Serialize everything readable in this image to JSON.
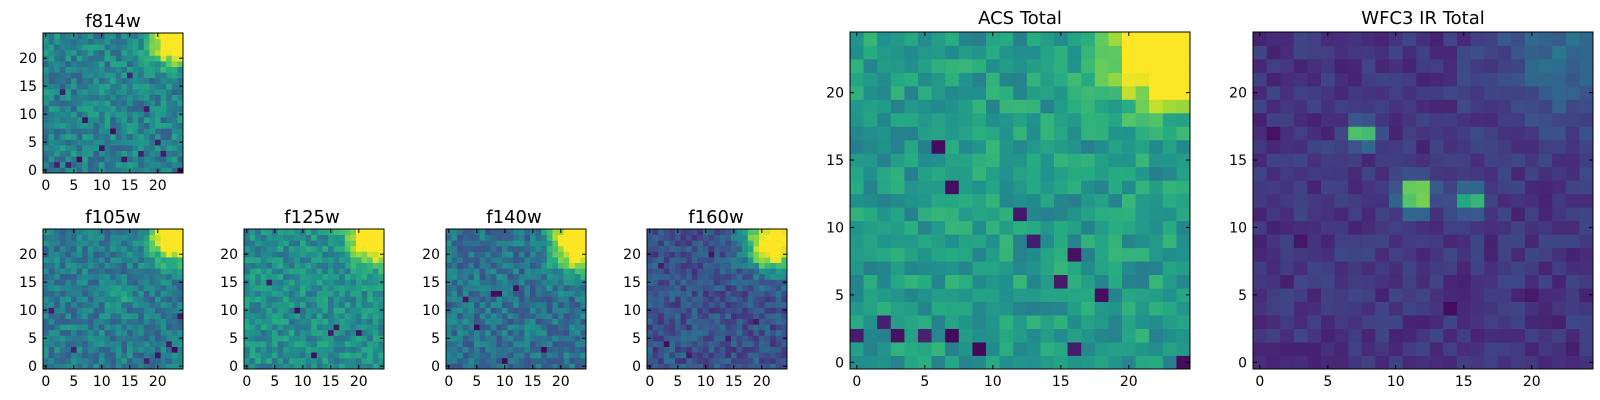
{
  "figure": {
    "colormap": "viridis",
    "colors": {
      "low": "#440154",
      "mid": "#21918c",
      "high": "#fde725",
      "frame": "#000000",
      "background": "#ffffff"
    }
  },
  "chart_data": [
    {
      "type": "heatmap",
      "title": "f814w",
      "grid_size": 25,
      "xlim": [
        0,
        24
      ],
      "ylim": [
        0,
        24
      ],
      "xticks": [
        "0",
        "5",
        "10",
        "15",
        "20"
      ],
      "yticks": [
        "0",
        "5",
        "10",
        "15",
        "20"
      ],
      "background_level": 0.45,
      "noise": 0.14,
      "seed": 11,
      "sources": [
        {
          "x": 23,
          "y": 23,
          "amp": 0.95,
          "sigma": 2.6
        }
      ],
      "dark_pixels": [
        [
          2,
          1
        ],
        [
          4,
          1
        ],
        [
          6,
          2
        ],
        [
          10,
          4
        ],
        [
          14,
          2
        ],
        [
          17,
          3
        ],
        [
          20,
          5
        ],
        [
          12,
          7
        ],
        [
          7,
          9
        ],
        [
          18,
          11
        ],
        [
          3,
          14
        ],
        [
          15,
          17
        ],
        [
          24,
          0
        ],
        [
          21,
          3
        ]
      ]
    },
    {
      "type": "heatmap",
      "title": "f105w",
      "grid_size": 25,
      "xlim": [
        0,
        24
      ],
      "ylim": [
        0,
        24
      ],
      "xticks": [
        "0",
        "5",
        "10",
        "15",
        "20"
      ],
      "yticks": [
        "0",
        "5",
        "10",
        "15",
        "20"
      ],
      "background_level": 0.42,
      "noise": 0.13,
      "seed": 23,
      "sources": [
        {
          "x": 23,
          "y": 23,
          "amp": 0.9,
          "sigma": 2.8
        },
        {
          "x": 13,
          "y": 13,
          "amp": 0.18,
          "sigma": 1.5
        }
      ],
      "dark_pixels": [
        [
          22,
          4
        ],
        [
          23,
          3
        ],
        [
          20,
          2
        ],
        [
          18,
          1
        ],
        [
          1,
          10
        ],
        [
          24,
          9
        ],
        [
          5,
          3
        ]
      ]
    },
    {
      "type": "heatmap",
      "title": "f125w",
      "grid_size": 25,
      "xlim": [
        0,
        24
      ],
      "ylim": [
        0,
        24
      ],
      "xticks": [
        "0",
        "5",
        "10",
        "15",
        "20"
      ],
      "yticks": [
        "0",
        "5",
        "10",
        "15",
        "20"
      ],
      "background_level": 0.5,
      "noise": 0.13,
      "seed": 37,
      "sources": [
        {
          "x": 23,
          "y": 23,
          "amp": 0.85,
          "sigma": 3.0
        }
      ],
      "dark_pixels": [
        [
          15,
          6
        ],
        [
          16,
          7
        ],
        [
          20,
          6
        ],
        [
          9,
          10
        ],
        [
          4,
          15
        ],
        [
          12,
          2
        ]
      ]
    },
    {
      "type": "heatmap",
      "title": "f140w",
      "grid_size": 25,
      "xlim": [
        0,
        24
      ],
      "ylim": [
        0,
        24
      ],
      "xticks": [
        "0",
        "5",
        "10",
        "15",
        "20"
      ],
      "yticks": [
        "0",
        "5",
        "10",
        "15",
        "20"
      ],
      "background_level": 0.38,
      "noise": 0.14,
      "seed": 53,
      "sources": [
        {
          "x": 23,
          "y": 22,
          "amp": 0.95,
          "sigma": 3.2
        }
      ],
      "dark_pixels": [
        [
          8,
          13
        ],
        [
          9,
          13
        ],
        [
          12,
          14
        ],
        [
          3,
          12
        ],
        [
          10,
          1
        ],
        [
          17,
          3
        ],
        [
          5,
          7
        ]
      ]
    },
    {
      "type": "heatmap",
      "title": "f160w",
      "grid_size": 25,
      "xlim": [
        0,
        24
      ],
      "ylim": [
        0,
        24
      ],
      "xticks": [
        "0",
        "5",
        "10",
        "15",
        "20"
      ],
      "yticks": [
        "0",
        "5",
        "10",
        "15",
        "20"
      ],
      "background_level": 0.26,
      "noise": 0.12,
      "seed": 71,
      "sources": [
        {
          "x": 22,
          "y": 22,
          "amp": 1.0,
          "sigma": 3.2
        }
      ],
      "dark_pixels": [
        [
          3,
          4
        ],
        [
          7,
          2
        ],
        [
          14,
          5
        ],
        [
          19,
          8
        ],
        [
          2,
          18
        ],
        [
          11,
          20
        ]
      ]
    },
    {
      "type": "heatmap",
      "title": "ACS Total",
      "grid_size": 25,
      "xlim": [
        0,
        24
      ],
      "ylim": [
        0,
        24
      ],
      "xticks": [
        "0",
        "5",
        "10",
        "15",
        "20"
      ],
      "yticks": [
        "0",
        "5",
        "10",
        "15",
        "20"
      ],
      "background_level": 0.55,
      "noise": 0.12,
      "seed": 11,
      "sources": [
        {
          "x": 23,
          "y": 23,
          "amp": 0.95,
          "sigma": 2.6
        }
      ],
      "dark_pixels": [
        [
          0,
          2
        ],
        [
          3,
          2
        ],
        [
          5,
          2
        ],
        [
          7,
          2
        ],
        [
          7,
          13
        ],
        [
          12,
          11
        ],
        [
          13,
          9
        ],
        [
          16,
          8
        ],
        [
          15,
          6
        ],
        [
          18,
          5
        ],
        [
          24,
          0
        ],
        [
          9,
          1
        ],
        [
          16,
          1
        ],
        [
          6,
          16
        ],
        [
          2,
          3
        ]
      ]
    },
    {
      "type": "heatmap",
      "title": "WFC3 IR Total",
      "grid_size": 25,
      "xlim": [
        0,
        24
      ],
      "ylim": [
        0,
        24
      ],
      "xticks": [
        "0",
        "5",
        "10",
        "15",
        "20"
      ],
      "yticks": [
        "0",
        "5",
        "10",
        "15",
        "20"
      ],
      "background_level": 0.16,
      "noise": 0.06,
      "seed": 97,
      "sources": [
        {
          "x": 23,
          "y": 23,
          "amp": 0.2,
          "sigma": 3.5
        },
        {
          "x": 7.5,
          "y": 17,
          "amp": 0.8,
          "sigma": 0.6
        },
        {
          "x": 11.5,
          "y": 12.5,
          "amp": 0.85,
          "sigma": 0.8
        },
        {
          "x": 15.5,
          "y": 12,
          "amp": 0.7,
          "sigma": 0.6
        }
      ],
      "dark_pixels": [
        [
          1,
          17
        ],
        [
          3,
          9
        ],
        [
          20,
          5
        ],
        [
          22,
          3
        ],
        [
          23,
          1
        ],
        [
          2,
          6
        ],
        [
          14,
          4
        ]
      ]
    }
  ]
}
